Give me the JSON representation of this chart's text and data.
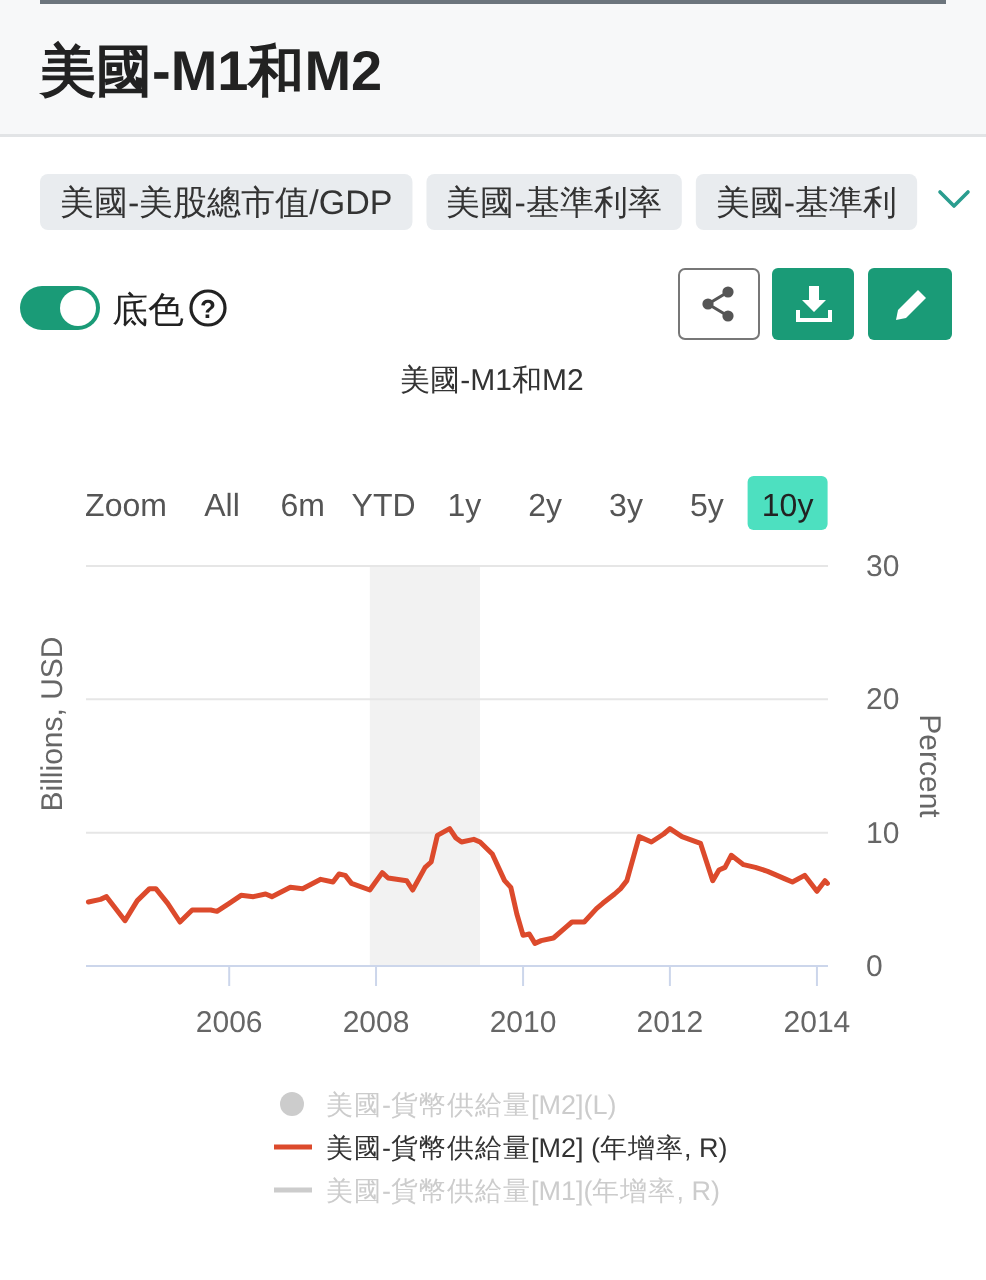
{
  "chart_data": {
    "type": "line",
    "title": "美國-M1和M2",
    "annotations": [
      "美國-M1和M2",
      "美國-美股總市值/GDP",
      "美國-基準利率",
      "美國-基準利",
      "底色",
      "?",
      "Zoom",
      "All",
      "6m",
      "YTD",
      "1y",
      "2y",
      "3y",
      "5y",
      "10y"
    ],
    "ylabel": "Billions, USD",
    "y2label": "Percent",
    "xlim": [
      "2004-01-20",
      "2014-02-25"
    ],
    "xticks": [
      "2006",
      "2008",
      "2010",
      "2012",
      "2014"
    ],
    "y2lim": [
      0,
      30
    ],
    "y2ticks": [
      0,
      10,
      20,
      30
    ],
    "grid": "y",
    "legend": "bottom",
    "bands": [
      {
        "axis": "x",
        "from": "2007-12",
        "to": "2009-06",
        "color": "#f2f2f2"
      }
    ],
    "series": [
      {
        "name": "美國-貨幣供給量[M2](L)",
        "color": "#cccccc",
        "type": "scatter"
      },
      {
        "name": "美國-貨幣供給量[M2] (年增率, R)",
        "color": "#dc4a2c",
        "axis": "y2",
        "x": [
          "2004-02",
          "2004-04",
          "2004-05",
          "2004-08",
          "2004-10",
          "2004-12",
          "2005-01",
          "2005-03",
          "2005-05",
          "2005-07",
          "2005-10",
          "2005-11",
          "2006-01",
          "2006-03",
          "2006-05",
          "2006-07",
          "2006-08",
          "2006-11",
          "2007-01",
          "2007-04",
          "2007-06",
          "2007-07",
          "2007-08",
          "2007-09",
          "2007-12",
          "2008-02",
          "2008-03",
          "2008-06",
          "2008-07",
          "2008-09",
          "2008-10",
          "2008-11",
          "2009-01",
          "2009-02",
          "2009-03",
          "2009-05",
          "2009-06",
          "2009-08",
          "2009-10",
          "2009-11",
          "2009-12",
          "2010-01",
          "2010-02",
          "2010-03",
          "2010-04",
          "2010-06",
          "2010-08",
          "2010-09",
          "2010-11",
          "2011-01",
          "2011-02",
          "2011-04",
          "2011-05",
          "2011-06",
          "2011-08",
          "2011-10",
          "2011-12",
          "2012-01",
          "2012-03",
          "2012-06",
          "2012-08",
          "2012-09",
          "2012-10",
          "2012-11",
          "2013-01",
          "2013-03",
          "2013-05",
          "2013-08",
          "2013-09",
          "2013-11",
          "2014-01",
          "2014-02-10",
          "2014-02-22"
        ],
        "values": [
          4.8,
          5.0,
          5.2,
          3.4,
          4.9,
          5.8,
          5.8,
          4.7,
          3.3,
          4.2,
          4.2,
          4.1,
          4.7,
          5.3,
          5.2,
          5.4,
          5.2,
          5.9,
          5.8,
          6.5,
          6.3,
          6.9,
          6.8,
          6.2,
          5.7,
          7.0,
          6.6,
          6.4,
          5.7,
          7.4,
          7.8,
          9.8,
          10.3,
          9.6,
          9.3,
          9.5,
          9.3,
          8.4,
          6.4,
          5.9,
          3.9,
          2.3,
          2.4,
          1.7,
          1.9,
          2.1,
          2.9,
          3.3,
          3.3,
          4.3,
          4.7,
          5.4,
          5.8,
          6.4,
          9.7,
          9.3,
          9.9,
          10.3,
          9.7,
          9.2,
          6.4,
          7.2,
          7.4,
          8.3,
          7.6,
          7.4,
          7.1,
          6.5,
          6.3,
          6.8,
          5.6,
          6.4,
          6.2
        ]
      },
      {
        "name": "美國-貨幣供給量[M1](年增率, R)",
        "color": "#cccccc",
        "axis": "y2"
      }
    ]
  }
}
